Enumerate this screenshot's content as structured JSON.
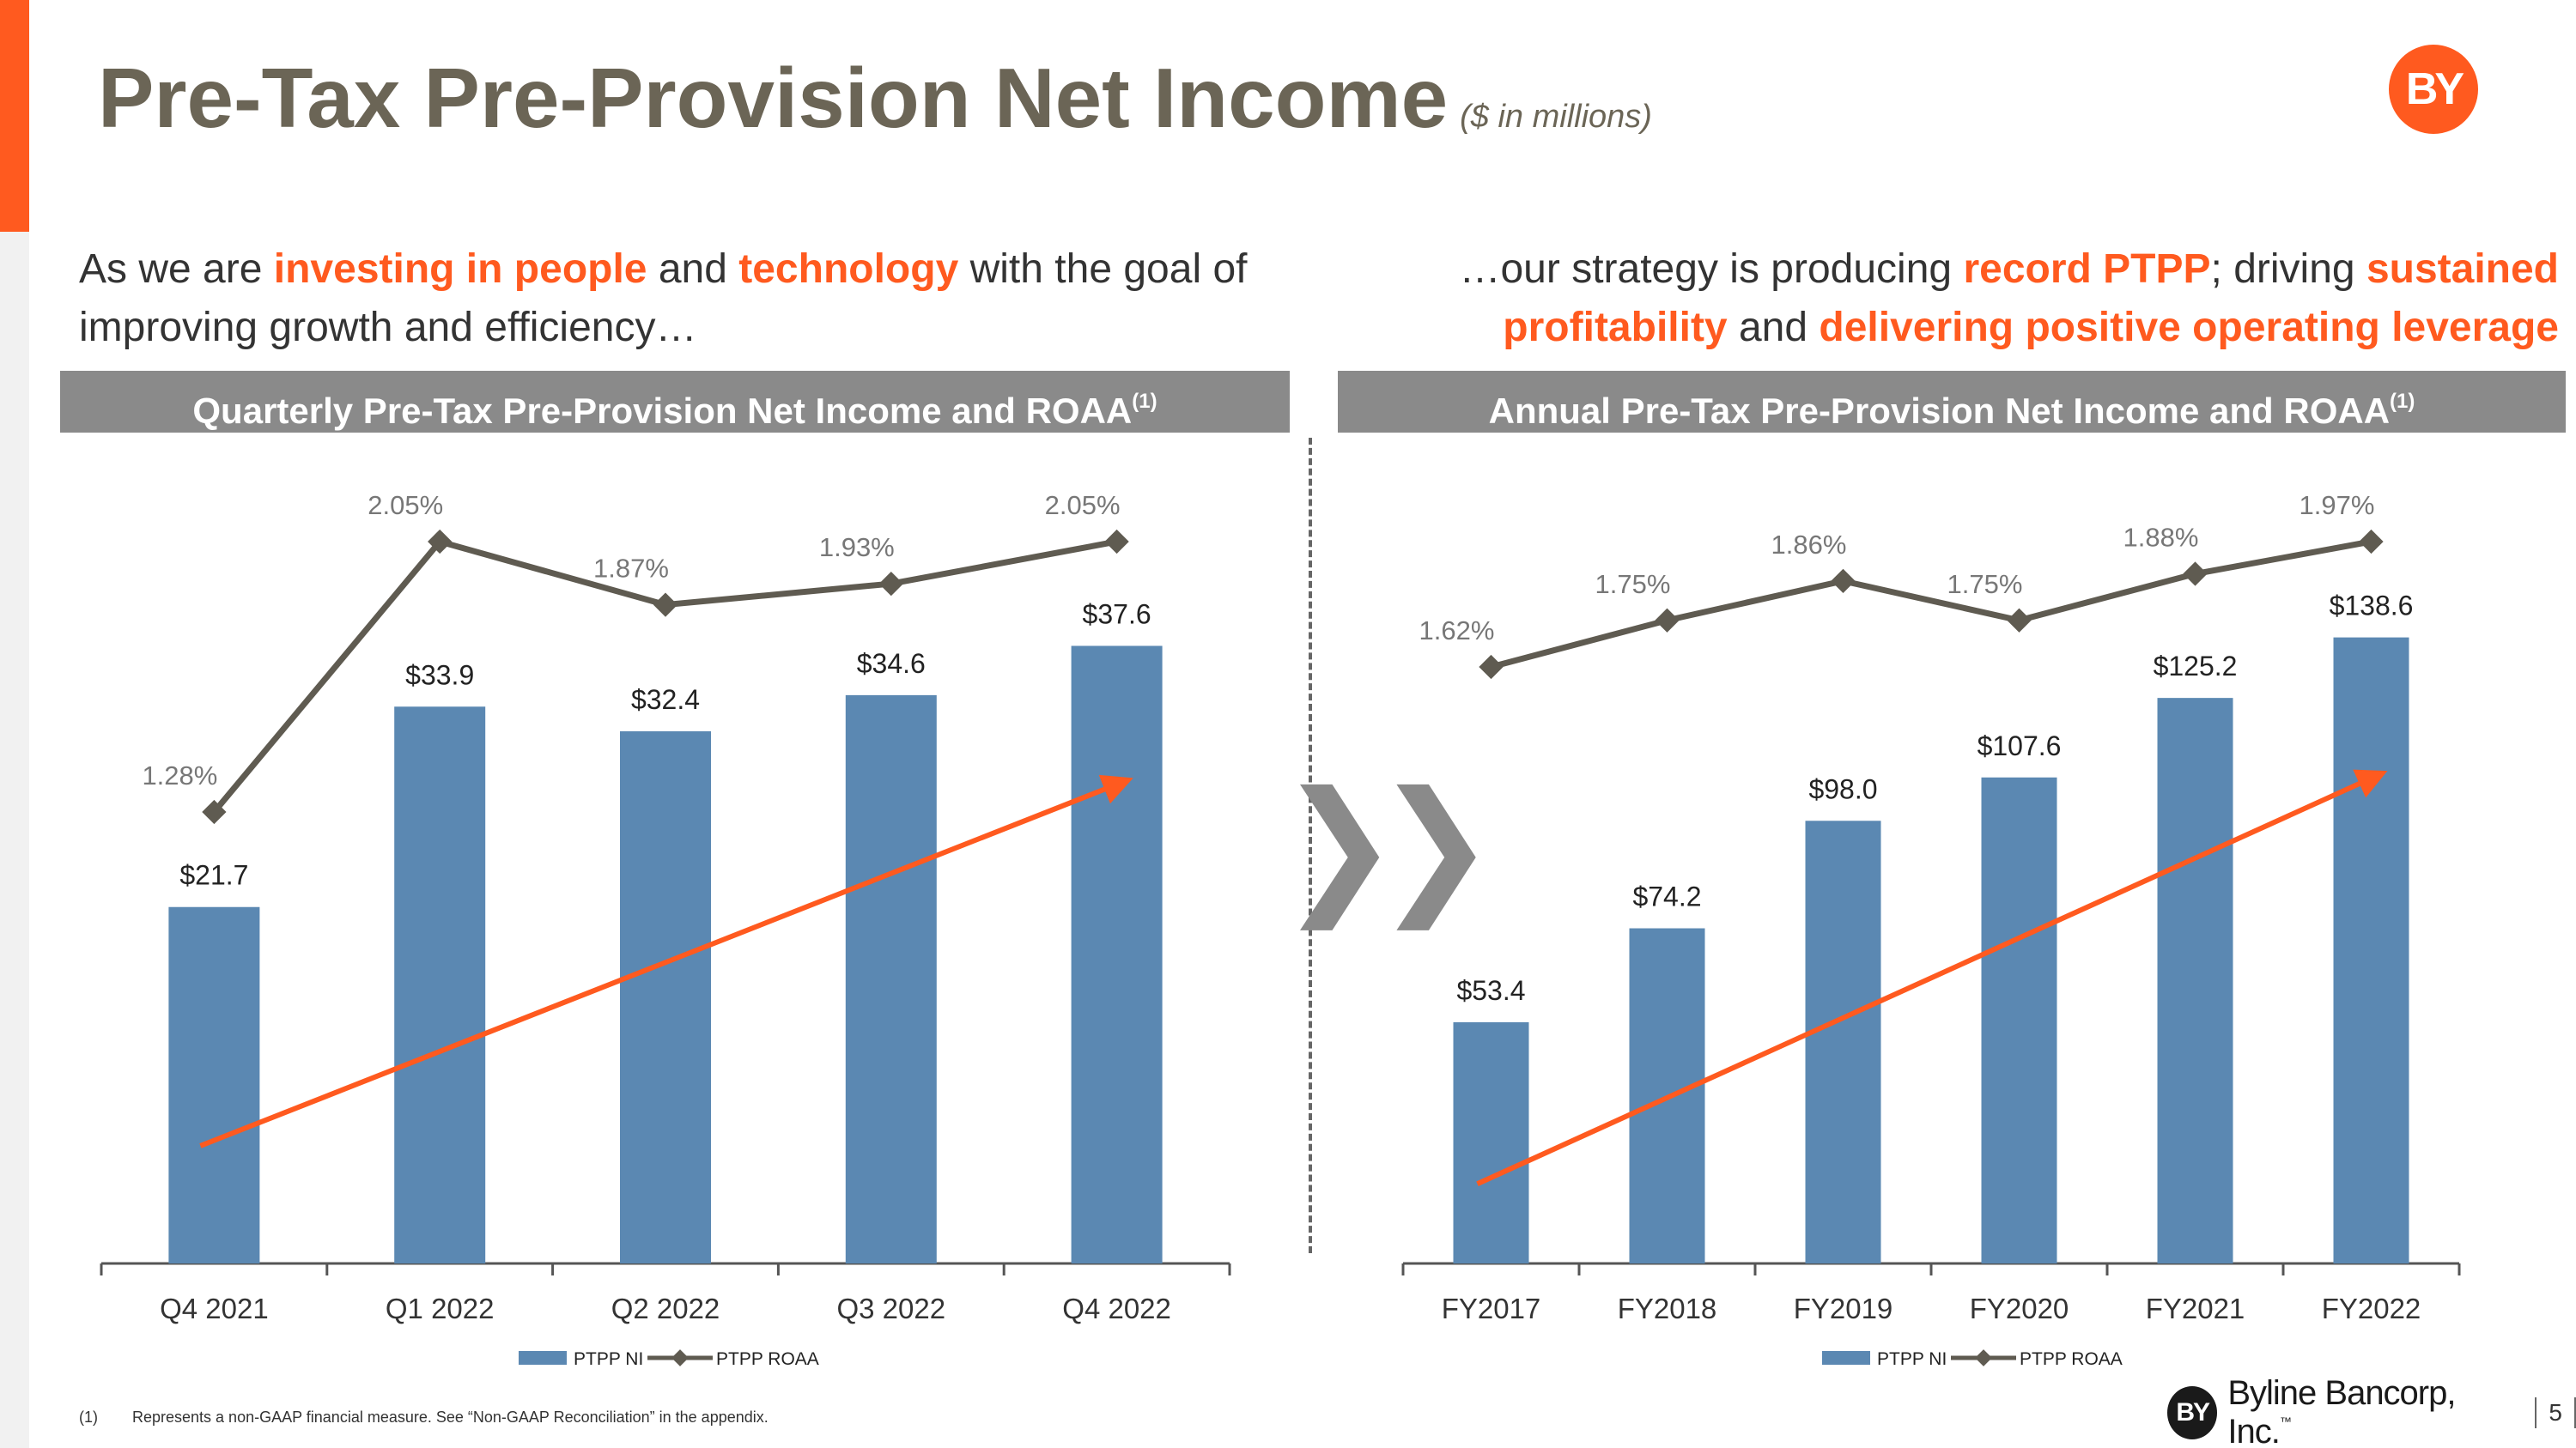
{
  "title": "Pre-Tax Pre-Provision Net Income",
  "title_sub": "($ in millions)",
  "logo_text": "BY",
  "intro_left": {
    "p1": "As we are ",
    "h1": "investing in people",
    "p2": " and ",
    "h2": "technology",
    "p3": " with the goal of improving growth and efficiency…"
  },
  "intro_right": {
    "p1": "…our strategy is producing ",
    "h1": "record PTPP",
    "p2": "; driving ",
    "h2": "sustained profitability",
    "p3": " and ",
    "h3": "delivering positive operating leverage"
  },
  "colors": {
    "accent": "#ff5a1f",
    "bar": "#5b88b2",
    "line": "#5f5b51",
    "banner": "#8a8a8a"
  },
  "chart_data": [
    {
      "type": "bar",
      "title": "Quarterly Pre-Tax Pre-Provision Net Income and ROAA",
      "title_sup": "(1)",
      "categories": [
        "Q4 2021",
        "Q1 2022",
        "Q2 2022",
        "Q3 2022",
        "Q4 2022"
      ],
      "series": [
        {
          "name": "PTPP NI",
          "values": [
            21.7,
            33.9,
            32.4,
            34.6,
            37.6
          ],
          "labels": [
            "$21.7",
            "$33.9",
            "$32.4",
            "$34.6",
            "$37.6"
          ]
        },
        {
          "name": "PTPP ROAA",
          "type": "line",
          "values": [
            1.28,
            2.05,
            1.87,
            1.93,
            2.05
          ],
          "labels": [
            "1.28%",
            "2.05%",
            "1.87%",
            "1.93%",
            "2.05%"
          ]
        }
      ],
      "ylim": [
        0,
        44
      ],
      "y2lim": [
        0.0,
        2.5
      ],
      "legend": [
        "PTPP NI",
        "PTPP ROAA"
      ],
      "legend_position": "bottom",
      "trend_arrow": true
    },
    {
      "type": "bar",
      "title": "Annual Pre-Tax Pre-Provision Net Income and ROAA",
      "title_sup": "(1)",
      "categories": [
        "FY2017",
        "FY2018",
        "FY2019",
        "FY2020",
        "FY2021",
        "FY2022"
      ],
      "series": [
        {
          "name": "PTPP NI",
          "values": [
            53.4,
            74.2,
            98.0,
            107.6,
            125.2,
            138.6
          ],
          "labels": [
            "$53.4",
            "$74.2",
            "$98.0",
            "$107.6",
            "$125.2",
            "$138.6"
          ]
        },
        {
          "name": "PTPP ROAA",
          "type": "line",
          "values": [
            1.62,
            1.75,
            1.86,
            1.75,
            1.88,
            1.97
          ],
          "labels": [
            "1.62%",
            "1.75%",
            "1.86%",
            "1.75%",
            "1.88%",
            "1.97%"
          ]
        }
      ],
      "ylim": [
        0,
        160
      ],
      "y2lim": [
        0.0,
        2.2
      ],
      "legend": [
        "PTPP NI",
        "PTPP ROAA"
      ],
      "legend_position": "bottom",
      "trend_arrow": true
    }
  ],
  "footnote_num": "(1)",
  "footnote": "Represents a non-GAAP financial measure.  See “Non-GAAP Reconciliation” in the appendix.",
  "brand_mark": "BY",
  "brand_name": "Byline Bancorp, Inc.",
  "brand_tm": "™",
  "page_number": "5"
}
